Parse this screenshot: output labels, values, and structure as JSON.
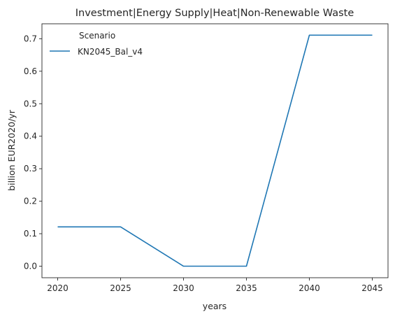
{
  "chart_data": {
    "type": "line",
    "title": "Investment|Energy Supply|Heat|Non-Renewable Waste",
    "xlabel": "years",
    "ylabel": "billion EUR2020/yr",
    "x": [
      2020,
      2025,
      2030,
      2035,
      2040,
      2045
    ],
    "xticks": [
      "2020",
      "2025",
      "2030",
      "2035",
      "2040",
      "2045"
    ],
    "yticks": [
      "0.0",
      "0.1",
      "0.2",
      "0.3",
      "0.4",
      "0.5",
      "0.6",
      "0.7"
    ],
    "xlim": [
      2018.75,
      2046.25
    ],
    "ylim": [
      -0.0355,
      0.746
    ],
    "grid": false,
    "legend": {
      "title": "Scenario",
      "placement": "top-left"
    },
    "series": [
      {
        "name": "KN2045_Bal_v4",
        "color": "#1f77b4",
        "values": [
          0.121,
          0.121,
          0.0,
          0.0,
          0.711,
          0.711
        ]
      }
    ]
  }
}
